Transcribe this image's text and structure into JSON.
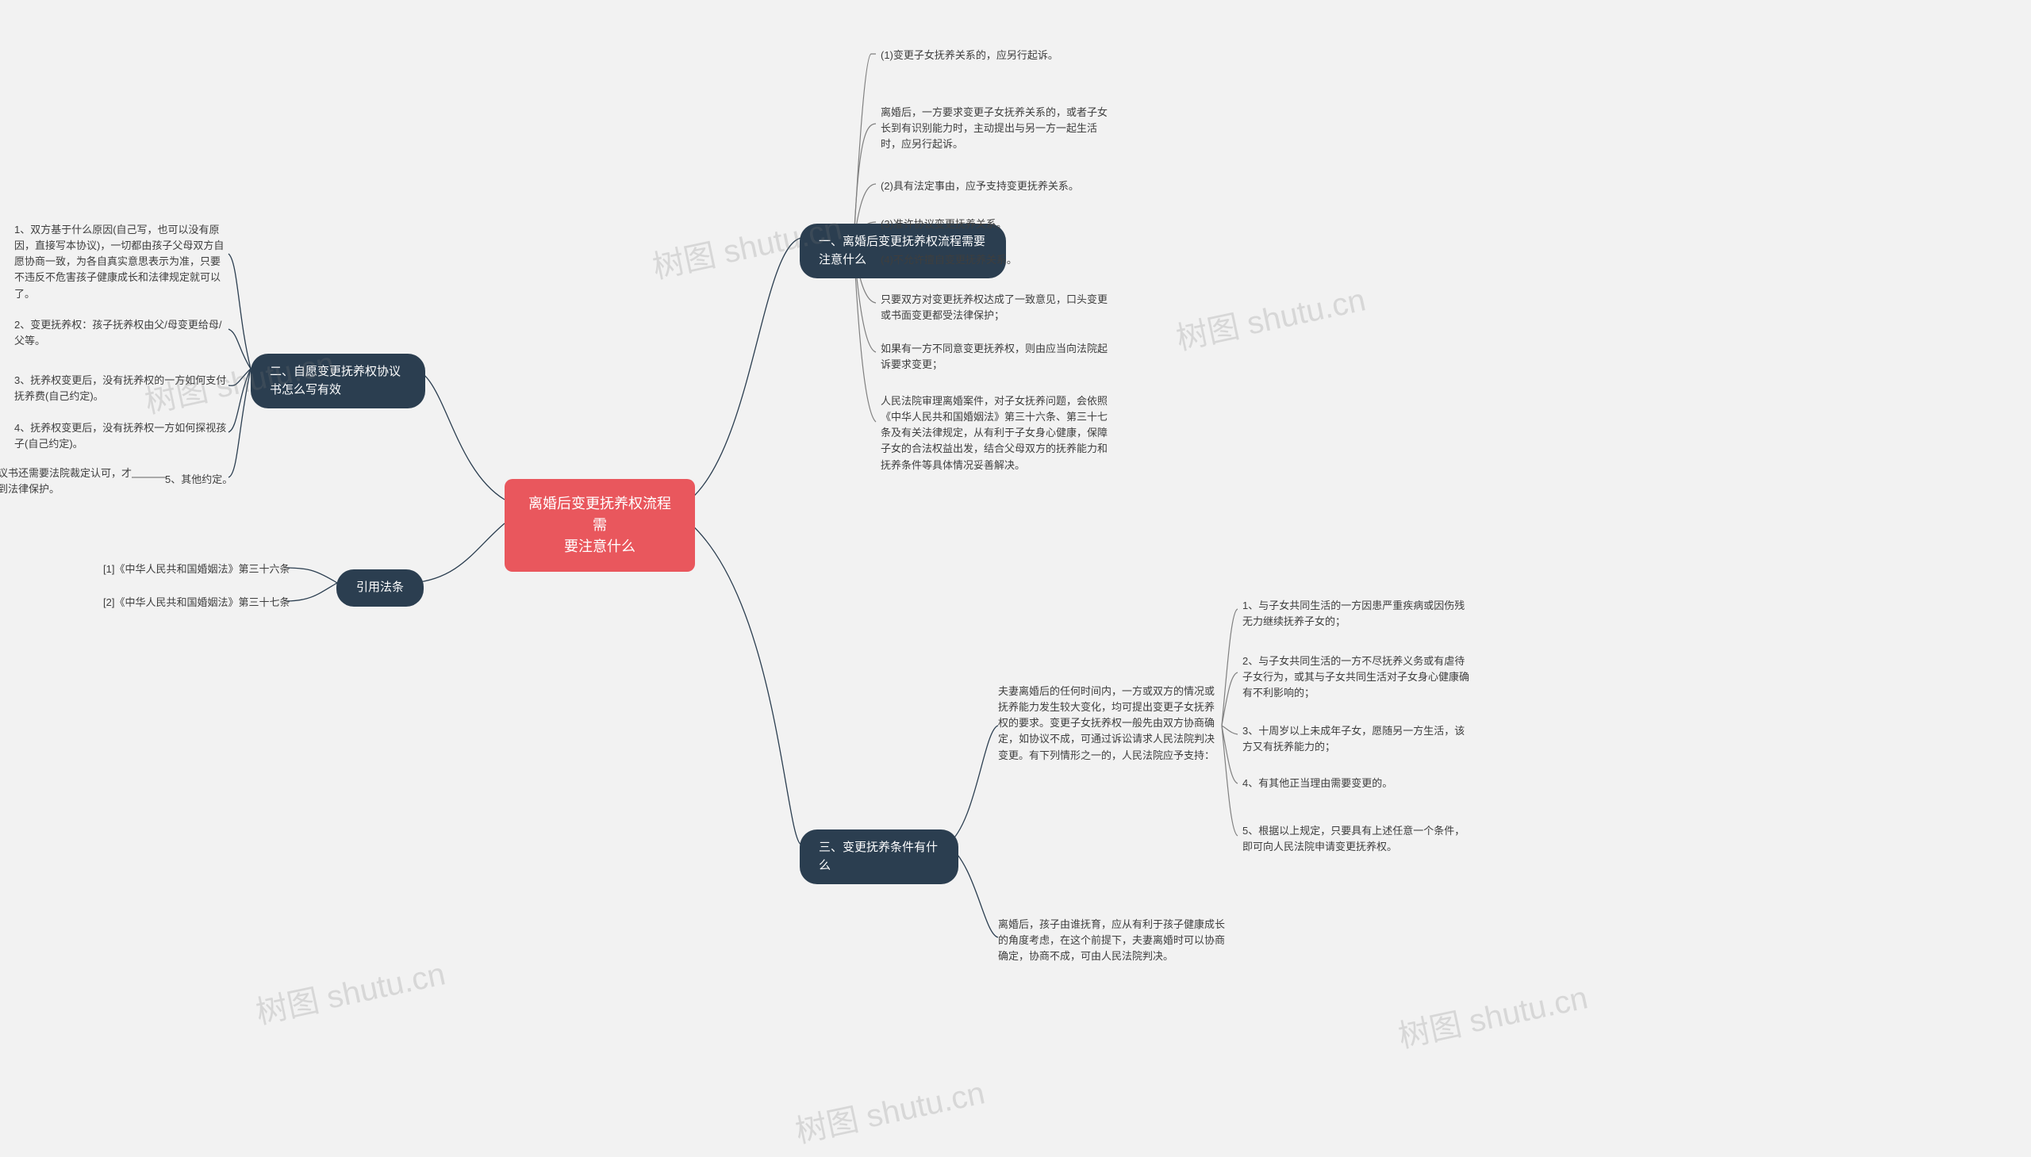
{
  "colors": {
    "background": "#f2f2f2",
    "root_bg": "#e9575d",
    "branch_bg": "#2b3e50",
    "connector": "#2b3e50",
    "bracket": "#808080",
    "text_dark": "#3e3e3e",
    "text_light": "#ffffff",
    "watermark": "rgba(120,120,120,0.22)"
  },
  "root": {
    "title": "离婚后变更抚养权流程需\n要注意什么"
  },
  "branches": {
    "b1": {
      "title": "一、离婚后变更抚养权流程需要注意什么",
      "leaves": [
        "(1)变更子女抚养关系的，应另行起诉。",
        "离婚后，一方要求变更子女抚养关系的，或者子女长到有识别能力时，主动提出与另一方一起生活时，应另行起诉。",
        "(2)具有法定事由，应予支持变更抚养关系。",
        "(3)准许协议变更抚养关系。",
        "(4)不允许擅自变更抚养关系。",
        "只要双方对变更抚养权达成了一致意见，口头变更或书面变更都受法律保护；",
        "如果有一方不同意变更抚养权，则由应当向法院起诉要求变更；",
        "人民法院审理离婚案件，对子女抚养问题，会依照《中华人民共和国婚姻法》第三十六条、第三十七条及有关法律规定，从有利于子女身心健康，保障子女的合法权益出发，结合父母双方的抚养能力和抚养条件等具体情况妥善解决。"
      ]
    },
    "b2": {
      "title": "二、自愿变更抚养权协议书怎么写有效",
      "leaves": [
        "1、双方基于什么原因(自己写，也可以没有原因，直接写本协议)，一切都由孩子父母双方自愿协商一致，为各自真实意思表示为准，只要不违反不危害孩子健康成长和法律规定就可以了。",
        "2、变更抚养权：孩子抚养权由父/母变更给母/父等。",
        "3、抚养权变更后，没有抚养权的一方如何支付抚养费(自己约定)。",
        "4、抚养权变更后，没有抚养权一方如何探视孩子(自己约定)。",
        "5、其他约定。"
      ],
      "footer": "最后，变更抚养权协议书还需要法院裁定认可，才能发生法律效力，得到法律保护。"
    },
    "b3": {
      "title": "三、变更抚养条件有什么",
      "sub1": {
        "text": "夫妻离婚后的任何时间内，一方或双方的情况或抚养能力发生较大变化，均可提出变更子女抚养权的要求。变更子女抚养权一般先由双方协商确定，如协议不成，可通过诉讼请求人民法院判决变更。有下列情形之一的，人民法院应予支持：",
        "leaves": [
          "1、与子女共同生活的一方因患严重疾病或因伤残无力继续抚养子女的；",
          "2、与子女共同生活的一方不尽抚养义务或有虐待子女行为，或其与子女共同生活对子女身心健康确有不利影响的；",
          "3、十周岁以上未成年子女，愿随另一方生活，该方又有抚养能力的；",
          "4、有其他正当理由需要变更的。",
          "5、根据以上规定，只要具有上述任意一个条件，即可向人民法院申请变更抚养权。"
        ]
      },
      "sub2": "离婚后，孩子由谁抚育，应从有利于孩子健康成长的角度考虑，在这个前提下，夫妻离婚时可以协商确定，协商不成，可由人民法院判决。"
    },
    "b4": {
      "title": "引用法条",
      "leaves": [
        "[1]《中华人民共和国婚姻法》第三十六条",
        "[2]《中华人民共和国婚姻法》第三十七条"
      ]
    }
  },
  "watermark": "树图 shutu.cn"
}
